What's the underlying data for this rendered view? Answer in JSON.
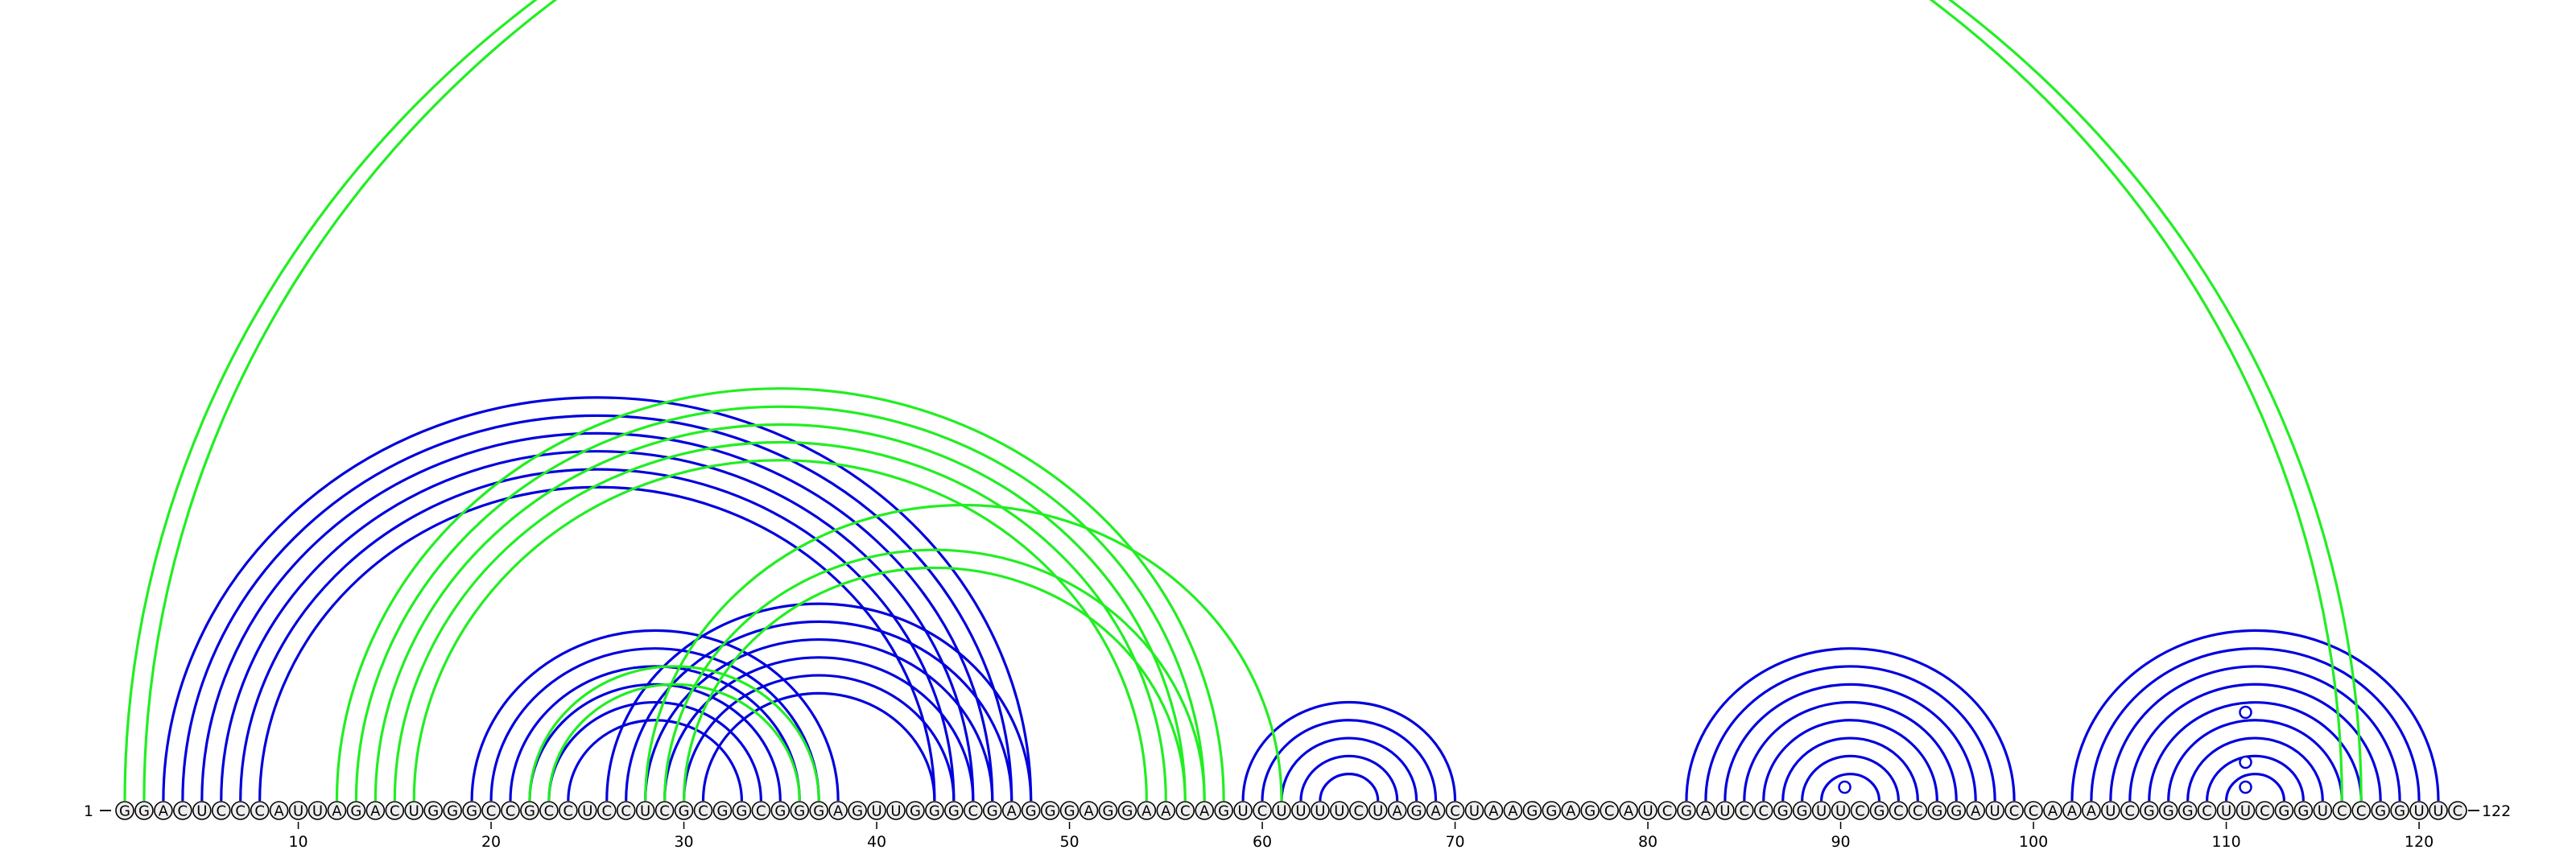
{
  "sequence": "GGACUCCCAUUAGACUGGGCCGCCUCCUCGCGGCGGGAGUUGGGCGAGGGAGGAACAGUCUUUUCUAGACUAAGGAGCAUCGAUCCGGUUCGCCGGAUCCAAAUCGGGCUUCGGUCCGGUUC",
  "start_label": "1",
  "end_label": "122",
  "ticks": [
    "10",
    "20",
    "30",
    "40",
    "50",
    "60",
    "70",
    "80",
    "90",
    "100",
    "110",
    "120"
  ],
  "colors": {
    "blue": "#0000dd",
    "green": "#22ee22",
    "nucleotide_fill": "#eeeeee",
    "nucleotide_stroke": "#000000"
  },
  "pairs_blue": [
    [
      3,
      48
    ],
    [
      4,
      47
    ],
    [
      5,
      46
    ],
    [
      6,
      45
    ],
    [
      7,
      44
    ],
    [
      8,
      43
    ],
    [
      19,
      38
    ],
    [
      20,
      37
    ],
    [
      21,
      36
    ],
    [
      22,
      35
    ],
    [
      23,
      34
    ],
    [
      24,
      33
    ],
    [
      26,
      48
    ],
    [
      27,
      47
    ],
    [
      28,
      46
    ],
    [
      29,
      45
    ],
    [
      30,
      44
    ],
    [
      31,
      43
    ],
    [
      59,
      70
    ],
    [
      60,
      69
    ],
    [
      61,
      68
    ],
    [
      62,
      67
    ],
    [
      63,
      66
    ],
    [
      82,
      99
    ],
    [
      83,
      98
    ],
    [
      84,
      97
    ],
    [
      85,
      96
    ],
    [
      86,
      95
    ],
    [
      87,
      94
    ],
    [
      88,
      93
    ],
    [
      89,
      92
    ],
    [
      102,
      121
    ],
    [
      103,
      120
    ],
    [
      104,
      119
    ],
    [
      105,
      118
    ],
    [
      106,
      117
    ],
    [
      107,
      116
    ],
    [
      108,
      115
    ],
    [
      109,
      114
    ],
    [
      110,
      113
    ]
  ],
  "pairs_green": [
    [
      1,
      116
    ],
    [
      2,
      117
    ],
    [
      12,
      58
    ],
    [
      13,
      57
    ],
    [
      14,
      56
    ],
    [
      15,
      55
    ],
    [
      16,
      54
    ],
    [
      22,
      37
    ],
    [
      23,
      36
    ],
    [
      29,
      57
    ],
    [
      30,
      56
    ],
    [
      28,
      61
    ]
  ],
  "bulges": [
    90,
    111,
    111,
    111
  ]
}
